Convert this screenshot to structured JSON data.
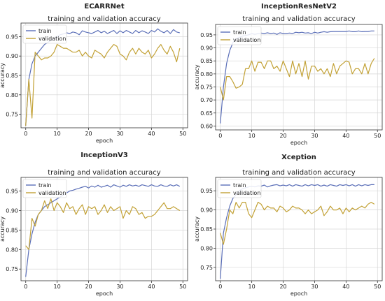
{
  "chart_data": [
    {
      "type": "line",
      "model": "ECARRNet",
      "title": "training and validation accuracy",
      "xlabel": "epoch",
      "ylabel": "accuracy",
      "xlim": [
        -1.5,
        51.5
      ],
      "ylim": [
        0.715,
        0.985
      ],
      "xticks": [
        0,
        10,
        20,
        30,
        40,
        50
      ],
      "xtick_labels": [
        "0",
        "10",
        "20",
        "30",
        "40",
        "50"
      ],
      "yticks": [
        0.75,
        0.8,
        0.85,
        0.9,
        0.95
      ],
      "ytick_labels": [
        "0.75",
        "0.80",
        "0.85",
        "0.90",
        "0.95"
      ],
      "grid": true,
      "legend": "top-left",
      "series": [
        {
          "name": "train",
          "color": "#5b6fb8",
          "values": [
            0.72,
            0.84,
            0.88,
            0.9,
            0.91,
            0.92,
            0.93,
            0.935,
            0.94,
            0.945,
            0.95,
            0.955,
            0.957,
            0.96,
            0.958,
            0.962,
            0.96,
            0.955,
            0.965,
            0.962,
            0.96,
            0.958,
            0.962,
            0.966,
            0.96,
            0.964,
            0.958,
            0.962,
            0.966,
            0.958,
            0.965,
            0.96,
            0.966,
            0.962,
            0.958,
            0.966,
            0.96,
            0.965,
            0.962,
            0.958,
            0.966,
            0.962,
            0.97,
            0.964,
            0.96,
            0.966,
            0.958,
            0.968,
            0.962,
            0.96
          ]
        },
        {
          "name": "validation",
          "color": "#c2a135",
          "values": [
            0.72,
            0.84,
            0.74,
            0.91,
            0.9,
            0.89,
            0.895,
            0.895,
            0.9,
            0.91,
            0.93,
            0.925,
            0.92,
            0.92,
            0.915,
            0.91,
            0.91,
            0.915,
            0.9,
            0.91,
            0.9,
            0.895,
            0.915,
            0.91,
            0.905,
            0.895,
            0.91,
            0.92,
            0.93,
            0.925,
            0.905,
            0.9,
            0.89,
            0.91,
            0.92,
            0.905,
            0.92,
            0.91,
            0.905,
            0.915,
            0.895,
            0.905,
            0.92,
            0.93,
            0.915,
            0.905,
            0.925,
            0.91,
            0.885,
            0.92
          ]
        }
      ]
    },
    {
      "type": "line",
      "model": "InceptionResNetV2",
      "title": "training and validation accuracy",
      "xlabel": "epoch",
      "ylabel": "accuracy",
      "xlim": [
        -1.5,
        51.5
      ],
      "ylim": [
        0.585,
        0.99
      ],
      "xticks": [
        0,
        10,
        20,
        30,
        40,
        50
      ],
      "xtick_labels": [
        "0",
        "10",
        "20",
        "30",
        "40",
        "50"
      ],
      "yticks": [
        0.6,
        0.65,
        0.7,
        0.75,
        0.8,
        0.85,
        0.9,
        0.95
      ],
      "ytick_labels": [
        "0.60",
        "0.65",
        "0.70",
        "0.75",
        "0.80",
        "0.85",
        "0.90",
        "0.95"
      ],
      "grid": true,
      "legend": "top-left",
      "series": [
        {
          "name": "train",
          "color": "#5b6fb8",
          "values": [
            0.61,
            0.75,
            0.84,
            0.89,
            0.92,
            0.935,
            0.94,
            0.945,
            0.948,
            0.95,
            0.955,
            0.952,
            0.955,
            0.957,
            0.955,
            0.958,
            0.955,
            0.957,
            0.952,
            0.958,
            0.955,
            0.955,
            0.957,
            0.955,
            0.96,
            0.958,
            0.96,
            0.957,
            0.958,
            0.955,
            0.96,
            0.957,
            0.96,
            0.962,
            0.96,
            0.962,
            0.963,
            0.963,
            0.963,
            0.963,
            0.963,
            0.965,
            0.962,
            0.962,
            0.965,
            0.962,
            0.963,
            0.963,
            0.965,
            0.965
          ]
        },
        {
          "name": "validation",
          "color": "#c2a135",
          "values": [
            0.75,
            0.7,
            0.79,
            0.79,
            0.77,
            0.745,
            0.75,
            0.76,
            0.82,
            0.82,
            0.85,
            0.81,
            0.845,
            0.845,
            0.82,
            0.85,
            0.85,
            0.82,
            0.83,
            0.81,
            0.85,
            0.82,
            0.79,
            0.85,
            0.8,
            0.84,
            0.79,
            0.85,
            0.78,
            0.83,
            0.83,
            0.81,
            0.82,
            0.8,
            0.82,
            0.79,
            0.84,
            0.8,
            0.83,
            0.84,
            0.85,
            0.845,
            0.8,
            0.82,
            0.82,
            0.8,
            0.84,
            0.8,
            0.84,
            0.86
          ]
        }
      ]
    },
    {
      "type": "line",
      "model": "InceptionV3",
      "title": "training and validation accuracy",
      "xlabel": "epoch",
      "ylabel": "accuracy",
      "xlim": [
        -1.5,
        51.5
      ],
      "ylim": [
        0.72,
        0.985
      ],
      "xticks": [
        0,
        10,
        20,
        30,
        40,
        50
      ],
      "xtick_labels": [
        "0",
        "10",
        "20",
        "30",
        "40",
        "50"
      ],
      "yticks": [
        0.75,
        0.8,
        0.85,
        0.9,
        0.95
      ],
      "ytick_labels": [
        "0.75",
        "0.80",
        "0.85",
        "0.90",
        "0.95"
      ],
      "grid": true,
      "legend": "top-left",
      "series": [
        {
          "name": "train",
          "color": "#5b6fb8",
          "values": [
            0.73,
            0.8,
            0.84,
            0.87,
            0.89,
            0.9,
            0.91,
            0.915,
            0.92,
            0.925,
            0.93,
            0.935,
            0.94,
            0.945,
            0.95,
            0.952,
            0.955,
            0.957,
            0.96,
            0.962,
            0.958,
            0.963,
            0.96,
            0.965,
            0.96,
            0.962,
            0.965,
            0.96,
            0.966,
            0.963,
            0.96,
            0.965,
            0.962,
            0.966,
            0.963,
            0.965,
            0.962,
            0.966,
            0.964,
            0.962,
            0.966,
            0.963,
            0.962,
            0.966,
            0.963,
            0.962,
            0.966,
            0.963,
            0.966,
            0.962
          ]
        },
        {
          "name": "validation",
          "color": "#c2a135",
          "values": [
            0.81,
            0.8,
            0.88,
            0.86,
            0.89,
            0.9,
            0.925,
            0.905,
            0.93,
            0.9,
            0.92,
            0.91,
            0.895,
            0.92,
            0.905,
            0.91,
            0.89,
            0.905,
            0.915,
            0.89,
            0.91,
            0.905,
            0.91,
            0.89,
            0.9,
            0.915,
            0.895,
            0.91,
            0.9,
            0.905,
            0.91,
            0.88,
            0.9,
            0.89,
            0.91,
            0.905,
            0.89,
            0.895,
            0.88,
            0.885,
            0.885,
            0.89,
            0.9,
            0.91,
            0.92,
            0.905,
            0.905,
            0.91,
            0.905,
            0.9
          ]
        }
      ]
    },
    {
      "type": "line",
      "model": "Xception",
      "title": "training and validation accuracy",
      "xlabel": "epoch",
      "ylabel": "accuracy",
      "xlim": [
        -1.5,
        51.5
      ],
      "ylim": [
        0.715,
        0.985
      ],
      "xticks": [
        0,
        10,
        20,
        30,
        40,
        50
      ],
      "xtick_labels": [
        "0",
        "10",
        "20",
        "30",
        "40",
        "50"
      ],
      "yticks": [
        0.75,
        0.8,
        0.85,
        0.9,
        0.95
      ],
      "ytick_labels": [
        "0.75",
        "0.80",
        "0.85",
        "0.90",
        "0.95"
      ],
      "grid": true,
      "legend": "top-left",
      "series": [
        {
          "name": "train",
          "color": "#5b6fb8",
          "values": [
            0.72,
            0.84,
            0.88,
            0.91,
            0.93,
            0.94,
            0.95,
            0.955,
            0.958,
            0.96,
            0.962,
            0.96,
            0.963,
            0.962,
            0.965,
            0.96,
            0.963,
            0.965,
            0.966,
            0.963,
            0.965,
            0.963,
            0.966,
            0.962,
            0.966,
            0.964,
            0.962,
            0.966,
            0.963,
            0.966,
            0.964,
            0.966,
            0.962,
            0.965,
            0.962,
            0.966,
            0.964,
            0.962,
            0.966,
            0.964,
            0.966,
            0.963,
            0.966,
            0.962,
            0.966,
            0.963,
            0.966,
            0.964,
            0.966,
            0.966
          ]
        },
        {
          "name": "validation",
          "color": "#c2a135",
          "values": [
            0.84,
            0.81,
            0.85,
            0.9,
            0.89,
            0.92,
            0.905,
            0.92,
            0.92,
            0.89,
            0.88,
            0.9,
            0.92,
            0.915,
            0.9,
            0.91,
            0.905,
            0.905,
            0.895,
            0.91,
            0.905,
            0.895,
            0.9,
            0.91,
            0.905,
            0.905,
            0.9,
            0.89,
            0.9,
            0.89,
            0.895,
            0.9,
            0.91,
            0.885,
            0.895,
            0.91,
            0.9,
            0.9,
            0.905,
            0.89,
            0.905,
            0.895,
            0.905,
            0.9,
            0.905,
            0.91,
            0.905,
            0.915,
            0.92,
            0.915
          ]
        }
      ]
    }
  ]
}
